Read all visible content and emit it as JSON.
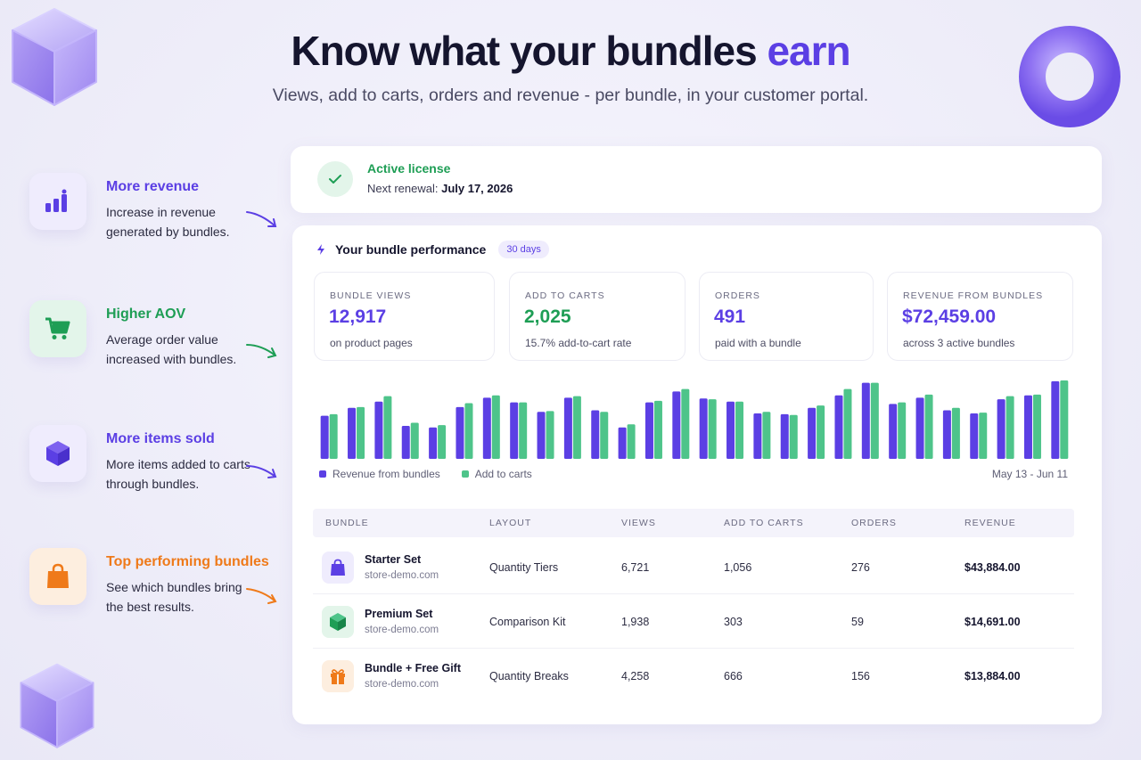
{
  "hero": {
    "title_main": "Know what your bundles ",
    "title_accent": "earn",
    "subtitle": "Views, add to carts, orders and revenue - per bundle, in your customer portal."
  },
  "features": [
    {
      "title": "More revenue",
      "desc": "Increase in revenue generated by bundles.",
      "color": "#5b3fe4",
      "icon": "bar-chart-icon"
    },
    {
      "title": "Higher AOV",
      "desc": "Average order value increased with bundles.",
      "color": "#1e9e55",
      "icon": "cart-icon"
    },
    {
      "title": "More items sold",
      "desc": "More items added to carts through bundles.",
      "color": "#5b3fe4",
      "icon": "box-icon"
    },
    {
      "title": "Top performing bundles",
      "desc": "See which bundles bring the best results.",
      "color": "#ef7a1a",
      "icon": "shopping-bag-icon"
    }
  ],
  "license": {
    "status": "Active license",
    "renewal_label": "Next renewal: ",
    "renewal_date": "July 17, 2026"
  },
  "performance": {
    "title": "Your bundle performance",
    "period": "30 days",
    "stats": [
      {
        "label": "BUNDLE VIEWS",
        "value": "12,917",
        "sub": "on product pages",
        "color": "#5b3fe4"
      },
      {
        "label": "ADD TO CARTS",
        "value": "2,025",
        "sub": "15.7% add-to-cart rate",
        "color": "#1e9e55"
      },
      {
        "label": "ORDERS",
        "value": "491",
        "sub": "paid with a bundle",
        "color": "#5b3fe4"
      },
      {
        "label": "REVENUE FROM BUNDLES",
        "value": "$72,459.00",
        "sub": "across 3 active bundles",
        "color": "#5b3fe4"
      }
    ],
    "legend": {
      "revenue": "Revenue from bundles",
      "carts": "Add to carts"
    },
    "date_range": "May 13 - Jun 11"
  },
  "chart_data": {
    "type": "bar",
    "series": [
      {
        "name": "Revenue from bundles",
        "color": "#5b3fe4",
        "values": [
          55,
          65,
          73,
          42,
          40,
          66,
          78,
          72,
          60,
          78,
          62,
          40,
          72,
          86,
          77,
          73,
          58,
          57,
          65,
          81,
          97,
          70,
          78,
          62,
          58,
          76,
          81,
          99
        ]
      },
      {
        "name": "Add to carts",
        "color": "#4ec48a",
        "values": [
          57,
          66,
          80,
          46,
          43,
          71,
          81,
          72,
          61,
          80,
          60,
          44,
          74,
          89,
          76,
          73,
          60,
          56,
          68,
          89,
          97,
          72,
          82,
          65,
          59,
          80,
          82,
          100
        ]
      }
    ],
    "ylim": [
      0,
      100
    ]
  },
  "table": {
    "headers": [
      "BUNDLE",
      "LAYOUT",
      "VIEWS",
      "ADD TO CARTS",
      "ORDERS",
      "REVENUE"
    ],
    "rows": [
      {
        "name": "Starter Set",
        "store": "store-demo.com",
        "layout": "Quantity Tiers",
        "views": "6,721",
        "carts": "1,056",
        "orders": "276",
        "revenue": "$43,884.00",
        "icon": "bag-icon",
        "color": "#5b3fe4",
        "bg": "#efecfd"
      },
      {
        "name": "Premium Set",
        "store": "store-demo.com",
        "layout": "Comparison Kit",
        "views": "1,938",
        "carts": "303",
        "orders": "59",
        "revenue": "$14,691.00",
        "icon": "cube-icon",
        "color": "#1e9e55",
        "bg": "#e3f5ea"
      },
      {
        "name": "Bundle + Free Gift",
        "store": "store-demo.com",
        "layout": "Quantity Breaks",
        "views": "4,258",
        "carts": "666",
        "orders": "156",
        "revenue": "$13,884.00",
        "icon": "gift-icon",
        "color": "#ef7a1a",
        "bg": "#fdeedf"
      }
    ]
  }
}
